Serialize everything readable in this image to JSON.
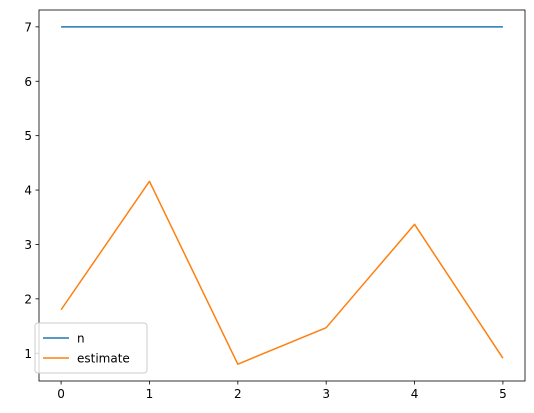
{
  "chart_data": {
    "type": "line",
    "x": [
      0,
      1,
      2,
      3,
      4,
      5
    ],
    "series": [
      {
        "name": "n",
        "values": [
          7,
          7,
          7,
          7,
          7,
          7
        ],
        "color": "#1f77b4"
      },
      {
        "name": "estimate",
        "values": [
          1.8,
          4.16,
          0.8,
          1.47,
          3.37,
          0.91
        ],
        "color": "#ff7f0e"
      }
    ],
    "title": "",
    "xlabel": "",
    "ylabel": "",
    "xlim": [
      -0.25,
      5.25
    ],
    "ylim": [
      0.49,
      7.31
    ],
    "xticks": [
      "0",
      "1",
      "2",
      "3",
      "4",
      "5"
    ],
    "yticks": [
      "1",
      "2",
      "3",
      "4",
      "5",
      "6",
      "7"
    ],
    "grid": false,
    "legend_position": "lower-left"
  }
}
